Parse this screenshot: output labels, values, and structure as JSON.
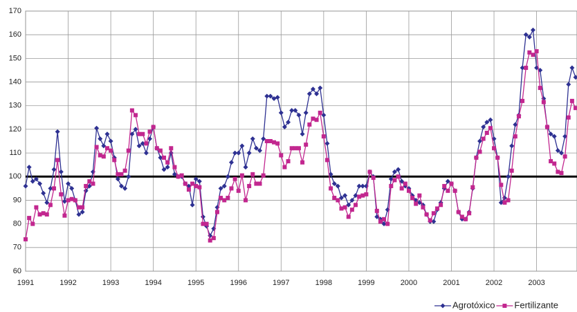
{
  "chart_data": {
    "type": "line",
    "categories": [
      "1991",
      null,
      null,
      null,
      null,
      null,
      null,
      null,
      null,
      null,
      null,
      null,
      "1992",
      null,
      null,
      null,
      null,
      null,
      null,
      null,
      null,
      null,
      null,
      null,
      "1993",
      null,
      null,
      null,
      null,
      null,
      null,
      null,
      null,
      null,
      null,
      null,
      "1994",
      null,
      null,
      null,
      null,
      null,
      null,
      null,
      null,
      null,
      null,
      null,
      "1995",
      null,
      null,
      null,
      null,
      null,
      null,
      null,
      null,
      null,
      null,
      null,
      "1996",
      null,
      null,
      null,
      null,
      null,
      null,
      null,
      null,
      null,
      null,
      null,
      "1997",
      null,
      null,
      null,
      null,
      null,
      null,
      null,
      null,
      null,
      null,
      null,
      "1998",
      null,
      null,
      null,
      null,
      null,
      null,
      null,
      null,
      null,
      null,
      null,
      "1999",
      null,
      null,
      null,
      null,
      null,
      null,
      null,
      null,
      null,
      null,
      null,
      "2000",
      null,
      null,
      null,
      null,
      null,
      null,
      null,
      null,
      null,
      null,
      null,
      "2001",
      null,
      null,
      null,
      null,
      null,
      null,
      null,
      null,
      null,
      null,
      null,
      "2002",
      null,
      null,
      null,
      null,
      null,
      null,
      null,
      null,
      null,
      null,
      null,
      "2003",
      null,
      null,
      null,
      null,
      null,
      null,
      null,
      null,
      null,
      null,
      null
    ],
    "series": [
      {
        "name": "Agrotóxico",
        "color": "#2e3192",
        "marker": "diamond",
        "values": [
          96,
          104,
          98,
          99,
          97,
          93,
          89,
          95,
          103,
          119,
          102,
          89.5,
          97,
          95,
          90,
          84,
          85,
          94,
          96,
          102,
          120.5,
          116,
          113,
          118,
          115,
          108,
          99,
          96,
          95,
          100,
          118,
          120,
          113,
          114,
          110,
          116,
          121,
          112,
          108,
          103,
          104,
          110,
          101,
          100,
          100,
          97,
          96,
          88,
          99,
          98,
          83,
          79,
          75,
          78,
          87,
          95,
          96,
          100,
          106,
          110,
          110,
          113,
          104,
          110,
          116,
          112,
          111,
          116,
          134,
          134,
          133,
          133.5,
          127,
          121,
          123,
          128,
          128,
          126,
          118,
          127,
          135,
          137,
          135,
          137.5,
          126,
          114,
          101,
          97,
          96,
          91,
          92,
          88,
          90,
          92,
          96,
          96,
          96,
          102,
          100,
          83,
          82,
          80,
          86,
          99,
          102,
          103,
          98,
          96,
          95,
          92,
          90,
          89,
          88,
          84,
          81,
          81,
          86,
          89,
          95,
          98,
          97,
          94,
          85,
          82,
          82,
          85,
          95,
          108,
          115,
          121,
          123,
          124,
          116,
          108,
          89,
          91,
          100,
          113,
          122,
          126,
          146,
          160,
          159,
          162,
          146,
          145,
          133,
          121,
          118,
          117,
          111,
          110,
          117,
          139,
          146,
          142
        ]
      },
      {
        "name": "Fertilizante",
        "color": "#c2278f",
        "marker": "square",
        "values": [
          73.5,
          82.5,
          80,
          87,
          84,
          84.5,
          84,
          88,
          95,
          107,
          92.5,
          83.5,
          90,
          90.5,
          90,
          87,
          87,
          96,
          98,
          97,
          112.5,
          109,
          108.5,
          112,
          111,
          107,
          101,
          101,
          102.5,
          111,
          128,
          126,
          118,
          118,
          114,
          119,
          121,
          112,
          111,
          108,
          106,
          112,
          104,
          100,
          100.5,
          97,
          94.5,
          97,
          96,
          95.5,
          80,
          80,
          73,
          74,
          85,
          91,
          90,
          91,
          95,
          99,
          94,
          100.5,
          90,
          96,
          101,
          97,
          97,
          100.5,
          115,
          115,
          114.5,
          114,
          109,
          104,
          106.5,
          112,
          112,
          112,
          106,
          113.5,
          122,
          124.5,
          124,
          127,
          117,
          107,
          95,
          91,
          90,
          86.5,
          87,
          83,
          86,
          88,
          91.5,
          92,
          92.5,
          102,
          99.5,
          85.5,
          81,
          82,
          80,
          96,
          98.5,
          100,
          95,
          97,
          94,
          91,
          88.5,
          92,
          87,
          84,
          81.5,
          84.5,
          86.5,
          88,
          96,
          94,
          97,
          94,
          85,
          83,
          82,
          84.5,
          95.5,
          108,
          110.5,
          116,
          118.5,
          120.5,
          112,
          108,
          96.5,
          89,
          90,
          102.5,
          117,
          125.5,
          132,
          146,
          152.5,
          151.5,
          153,
          137.5,
          131.5,
          121,
          106.5,
          105.5,
          102,
          101.5,
          108.5,
          125,
          132,
          129
        ]
      }
    ],
    "ylim": [
      60,
      170
    ],
    "yticks": [
      60,
      70,
      80,
      90,
      100,
      110,
      120,
      130,
      140,
      150,
      160,
      170
    ],
    "grid": true,
    "reference_line": 100,
    "legend": "bottom-right"
  }
}
